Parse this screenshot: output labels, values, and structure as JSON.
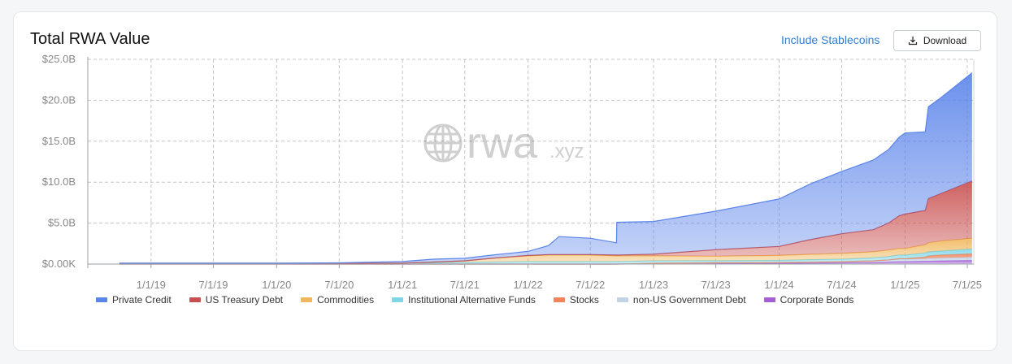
{
  "header": {
    "title": "Total RWA Value",
    "include_label": "Include Stablecoins",
    "download_label": "Download"
  },
  "watermark": {
    "text": "rwa",
    "suffix": ".xyz"
  },
  "chart_data": {
    "type": "area",
    "title": "Total RWA Value",
    "stacked": true,
    "grid": true,
    "legend_position": "bottom",
    "y_unit": "billion USD",
    "ylim": [
      0,
      25
    ],
    "yticks": [
      0,
      5,
      10,
      15,
      20,
      25
    ],
    "ytick_labels": [
      "$0.00K",
      "$5.0B",
      "$10.0B",
      "$15.0B",
      "$20.0B",
      "$25.0B"
    ],
    "xlim": [
      "2018-07-01",
      "2025-07-20"
    ],
    "xticks": [
      "2018-07-01",
      "2019-01-01",
      "2019-07-01",
      "2020-01-01",
      "2020-07-01",
      "2021-01-01",
      "2021-07-01",
      "2022-01-01",
      "2022-07-01",
      "2023-01-01",
      "2023-07-01",
      "2024-01-01",
      "2024-07-01",
      "2025-01-01",
      "2025-07-01"
    ],
    "xtick_labels": [
      "",
      "1/1/19",
      "7/1/19",
      "1/1/20",
      "7/1/20",
      "1/1/21",
      "7/1/21",
      "1/1/22",
      "7/1/22",
      "1/1/23",
      "7/1/23",
      "1/1/24",
      "7/1/24",
      "1/1/25",
      "7/1/25"
    ],
    "x": [
      "2018-10-01",
      "2019-01-01",
      "2019-07-01",
      "2020-01-01",
      "2020-07-01",
      "2021-01-01",
      "2021-04-01",
      "2021-07-01",
      "2021-10-01",
      "2022-01-01",
      "2022-03-01",
      "2022-04-01",
      "2022-07-01",
      "2022-09-15",
      "2022-09-16",
      "2023-01-01",
      "2023-07-01",
      "2024-01-01",
      "2024-04-01",
      "2024-07-01",
      "2024-10-01",
      "2024-11-15",
      "2024-12-15",
      "2025-01-01",
      "2025-03-01",
      "2025-03-10",
      "2025-04-15",
      "2025-07-15"
    ],
    "series": [
      {
        "name": "Corporate Bonds",
        "color": "#a55fd6",
        "values": [
          0,
          0,
          0,
          0,
          0,
          0,
          0,
          0,
          0,
          0,
          0,
          0,
          0,
          0,
          0,
          0.05,
          0.08,
          0.1,
          0.12,
          0.15,
          0.2,
          0.25,
          0.3,
          0.3,
          0.35,
          0.35,
          0.4,
          0.45
        ]
      },
      {
        "name": "non-US Government Debt",
        "color": "#c2d3e6",
        "values": [
          0,
          0,
          0,
          0,
          0,
          0,
          0,
          0,
          0,
          0,
          0,
          0,
          0,
          0,
          0,
          0.05,
          0.08,
          0.1,
          0.12,
          0.15,
          0.2,
          0.25,
          0.3,
          0.3,
          0.3,
          0.35,
          0.35,
          0.4
        ]
      },
      {
        "name": "Stocks",
        "color": "#f2845c",
        "values": [
          0,
          0,
          0,
          0,
          0,
          0,
          0,
          0,
          0,
          0,
          0,
          0,
          0,
          0,
          0,
          0,
          0,
          0,
          0,
          0,
          0,
          0.02,
          0.05,
          0.05,
          0.2,
          0.3,
          0.35,
          0.4
        ]
      },
      {
        "name": "Institutional Alternative Funds",
        "color": "#7fd6e6",
        "values": [
          0.1,
          0.1,
          0.1,
          0.1,
          0.1,
          0.12,
          0.15,
          0.2,
          0.25,
          0.3,
          0.3,
          0.3,
          0.3,
          0.3,
          0.3,
          0.3,
          0.25,
          0.25,
          0.3,
          0.3,
          0.35,
          0.4,
          0.45,
          0.45,
          0.5,
          0.5,
          0.5,
          0.6
        ]
      },
      {
        "name": "Commodities",
        "color": "#f0b65a",
        "values": [
          0,
          0,
          0,
          0,
          0,
          0,
          0.1,
          0.2,
          0.5,
          0.7,
          0.8,
          0.8,
          0.8,
          0.7,
          0.7,
          0.6,
          0.55,
          0.6,
          0.65,
          0.7,
          0.75,
          0.8,
          0.8,
          0.8,
          1.0,
          1.1,
          1.2,
          1.3
        ]
      },
      {
        "name": "US Treasury Debt",
        "color": "#c94f4f",
        "values": [
          0,
          0,
          0,
          0,
          0,
          0,
          0,
          0,
          0,
          0.05,
          0.05,
          0.05,
          0.05,
          0.1,
          0.1,
          0.2,
          0.8,
          1.1,
          1.8,
          2.4,
          2.7,
          3.3,
          4.0,
          4.2,
          4.2,
          5.4,
          5.8,
          7.0
        ]
      },
      {
        "name": "Private Credit",
        "color": "#5b84ea",
        "values": [
          0,
          0,
          0,
          0,
          0.05,
          0.2,
          0.35,
          0.3,
          0.4,
          0.5,
          1.1,
          2.2,
          2.0,
          1.5,
          4.0,
          4.0,
          4.7,
          5.8,
          6.8,
          7.6,
          8.5,
          9.0,
          9.6,
          9.9,
          9.6,
          11.2,
          11.7,
          13.2
        ]
      }
    ]
  },
  "legend_order": [
    "Private Credit",
    "US Treasury Debt",
    "Commodities",
    "Institutional Alternative Funds",
    "Stocks",
    "non-US Government Debt",
    "Corporate Bonds"
  ]
}
